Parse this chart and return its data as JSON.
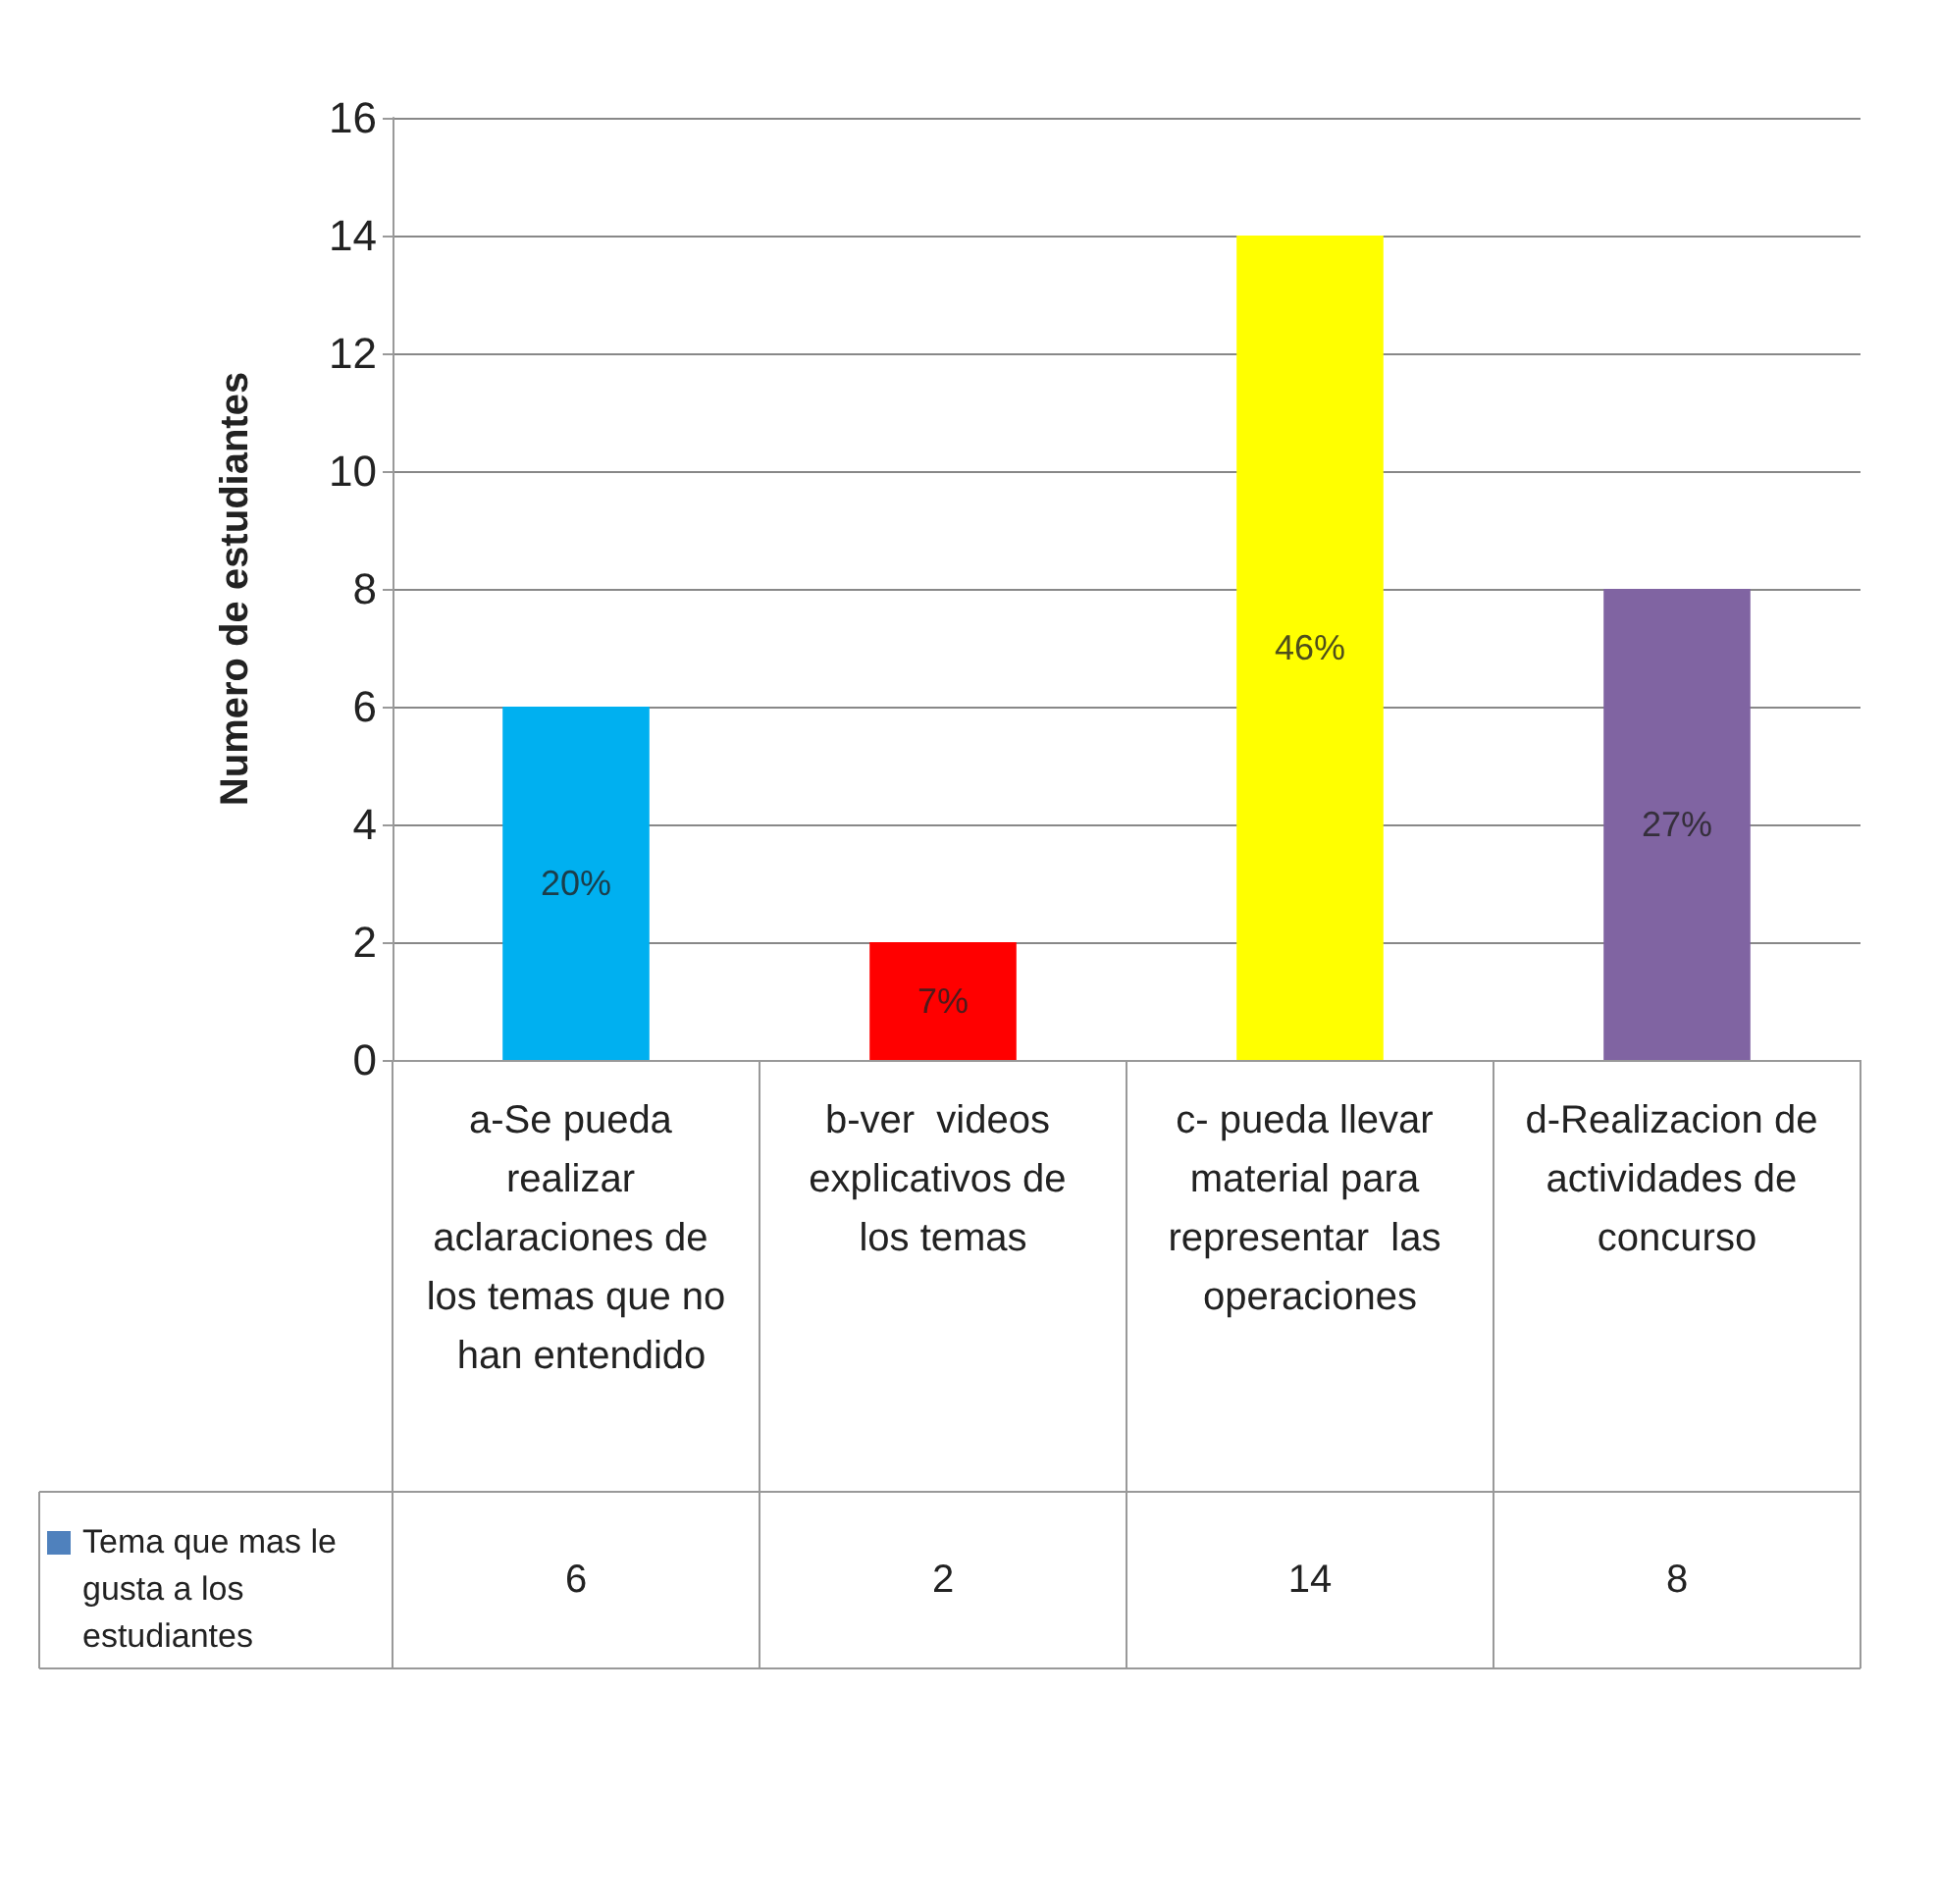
{
  "chart_data": {
    "type": "bar",
    "ylabel": "Numero de estudiantes",
    "categories": [
      "a-Se pueda realizar aclaraciones de los temas que no han entendido",
      "b-ver  videos explicativos de los temas",
      "c- pueda llevar material para representar  las operaciones",
      "d-Realizacion de actividades de concurso"
    ],
    "series": [
      {
        "name": "Tema que mas  le gusta a los estudiantes",
        "color": "#4f81bd",
        "colors": [
          "#00b0f0",
          "#ff0000",
          "#ffff00",
          "#8064a2"
        ],
        "values": [
          6,
          2,
          14,
          8
        ]
      }
    ],
    "annotations": [
      "20%",
      "7%",
      "46%",
      "27%"
    ],
    "data_labels": true,
    "ylim": [
      0,
      16
    ],
    "yticks": [
      0,
      2,
      4,
      6,
      8,
      10,
      12,
      14,
      16
    ],
    "grid": "y",
    "legend": "bottom left"
  }
}
